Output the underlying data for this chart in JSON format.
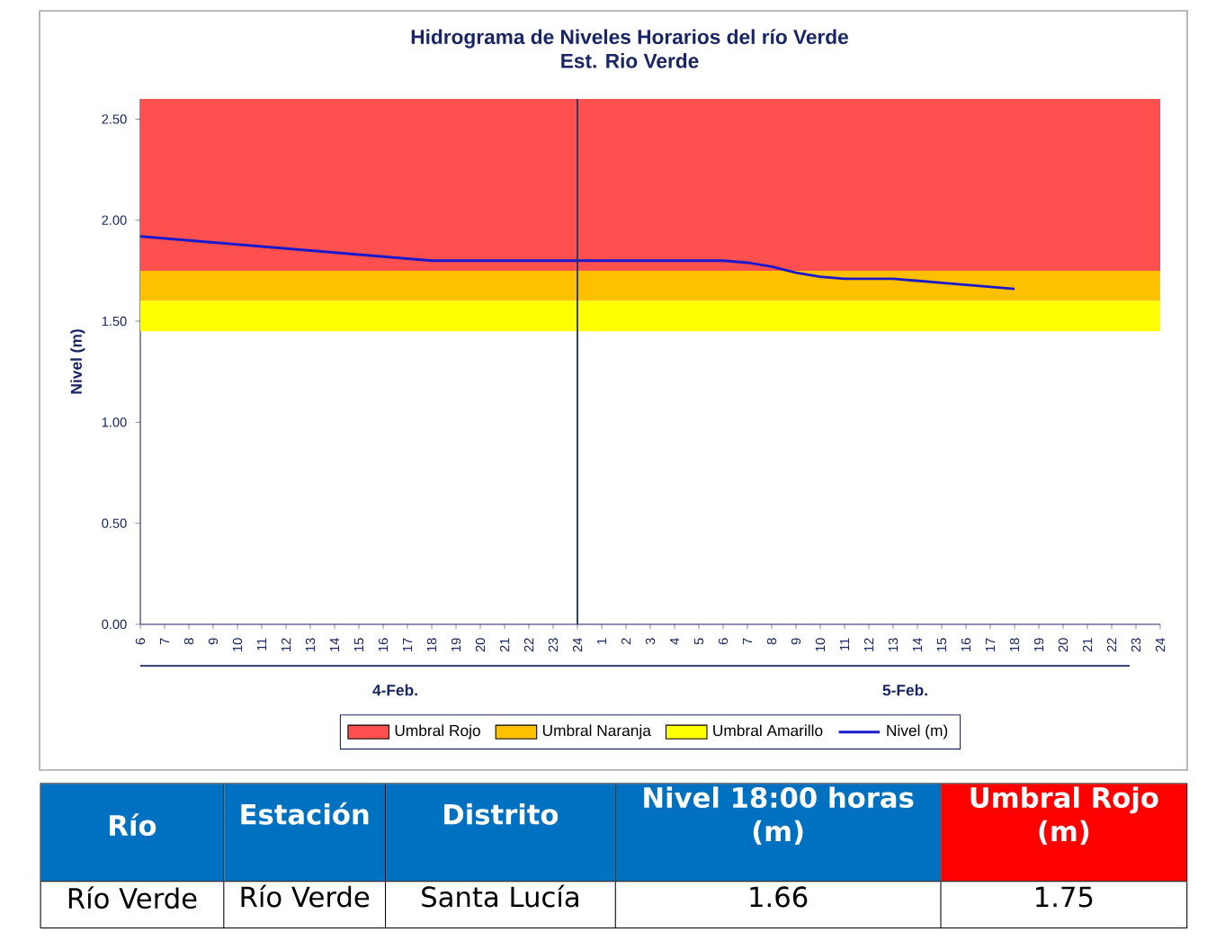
{
  "chart_data": [
    {
      "type": "line",
      "title": "Hidrograma de Niveles Horarios del río Verde",
      "subtitle": "Est. Rio Verde",
      "ylabel": "Nivel (m)",
      "categories": [
        "6",
        "7",
        "8",
        "9",
        "10",
        "11",
        "12",
        "13",
        "14",
        "15",
        "16",
        "17",
        "18",
        "19",
        "20",
        "21",
        "22",
        "23",
        "24",
        "1",
        "2",
        "3",
        "4",
        "5",
        "6",
        "7",
        "8",
        "9",
        "10",
        "11",
        "12",
        "13",
        "14",
        "15",
        "16",
        "17",
        "18",
        "19",
        "20",
        "21",
        "22",
        "23",
        "24"
      ],
      "series": [
        {
          "name": "Nivel (m)",
          "color": "#1a1acc",
          "values": [
            1.92,
            1.91,
            1.9,
            1.89,
            1.88,
            1.87,
            1.86,
            1.85,
            1.84,
            1.83,
            1.82,
            1.81,
            1.8,
            1.8,
            1.8,
            1.8,
            1.8,
            1.8,
            1.8,
            1.8,
            1.8,
            1.8,
            1.8,
            1.8,
            1.8,
            1.79,
            1.77,
            1.74,
            1.72,
            1.71,
            1.71,
            1.71,
            1.7,
            1.69,
            1.68,
            1.67,
            1.66,
            null,
            null,
            null,
            null,
            null,
            null
          ]
        }
      ],
      "ylim": [
        0,
        2.6
      ],
      "yticks": [
        {
          "value": 0,
          "label": "0.00"
        },
        {
          "value": 0.5,
          "label": "0.50"
        },
        {
          "value": 1,
          "label": "1.00"
        },
        {
          "value": 1.5,
          "label": "1.50"
        },
        {
          "value": 2,
          "label": "2.00"
        },
        {
          "value": 2.5,
          "label": "2.50"
        }
      ],
      "bands": [
        {
          "axis": "y",
          "from": 1.75,
          "to": 2.6,
          "label": "Umbral Rojo",
          "color": "#ff5050"
        },
        {
          "axis": "y",
          "from": 1.6,
          "to": 1.75,
          "label": "Umbral Naranja",
          "color": "#ffc000"
        },
        {
          "axis": "y",
          "from": 1.45,
          "to": 1.6,
          "label": "Umbral Amarillo",
          "color": "#ffff00"
        }
      ],
      "ref_lines": [
        {
          "axis": "x",
          "value": "24",
          "color": "#1f3864"
        }
      ],
      "annotations": [
        "4-Feb.",
        "5-Feb."
      ],
      "legend": "bottom"
    },
    {
      "type": "other",
      "categories": [
        "Río",
        "Estación",
        "Distrito",
        "Nivel 18:00 horas (m)",
        "Umbral Rojo (m)"
      ],
      "colors": [
        "#0070c0",
        "#0070c0",
        "#0070c0",
        "#0070c0",
        "#ff0000"
      ],
      "annotations": [
        "Río Verde",
        "Río Verde",
        "Santa Lucía",
        "1.66",
        "1.75"
      ]
    }
  ]
}
